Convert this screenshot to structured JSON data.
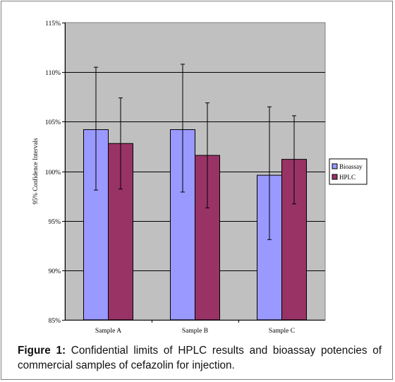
{
  "chart_data": {
    "type": "bar",
    "title": "",
    "xlabel": "",
    "ylabel": "95% Confidence Intervals",
    "ylim": [
      85,
      115
    ],
    "yticks": [
      "85%",
      "90%",
      "95%",
      "100%",
      "105%",
      "110%",
      "115%"
    ],
    "ytick_values": [
      85,
      90,
      95,
      100,
      105,
      110,
      115
    ],
    "grid": true,
    "legend_position": "right",
    "plot_background": "#c0c0c0",
    "categories": [
      "Sample A",
      "Sample B",
      "Sample C"
    ],
    "series": [
      {
        "name": "Bioassay",
        "color": "#9999ff",
        "values": [
          104.2,
          104.2,
          99.6
        ],
        "error_low": [
          98.1,
          97.9,
          93.1
        ],
        "error_high": [
          110.5,
          110.8,
          106.5
        ]
      },
      {
        "name": "HPLC",
        "color": "#993366",
        "values": [
          102.8,
          101.6,
          101.2
        ],
        "error_low": [
          98.2,
          96.3,
          96.7
        ],
        "error_high": [
          107.4,
          106.9,
          105.6
        ]
      }
    ]
  },
  "caption": {
    "label": "Figure 1:",
    "text": " Confidential limits of HPLC results  and bioassay potencies of commercial samples of cefazolin for injection."
  }
}
